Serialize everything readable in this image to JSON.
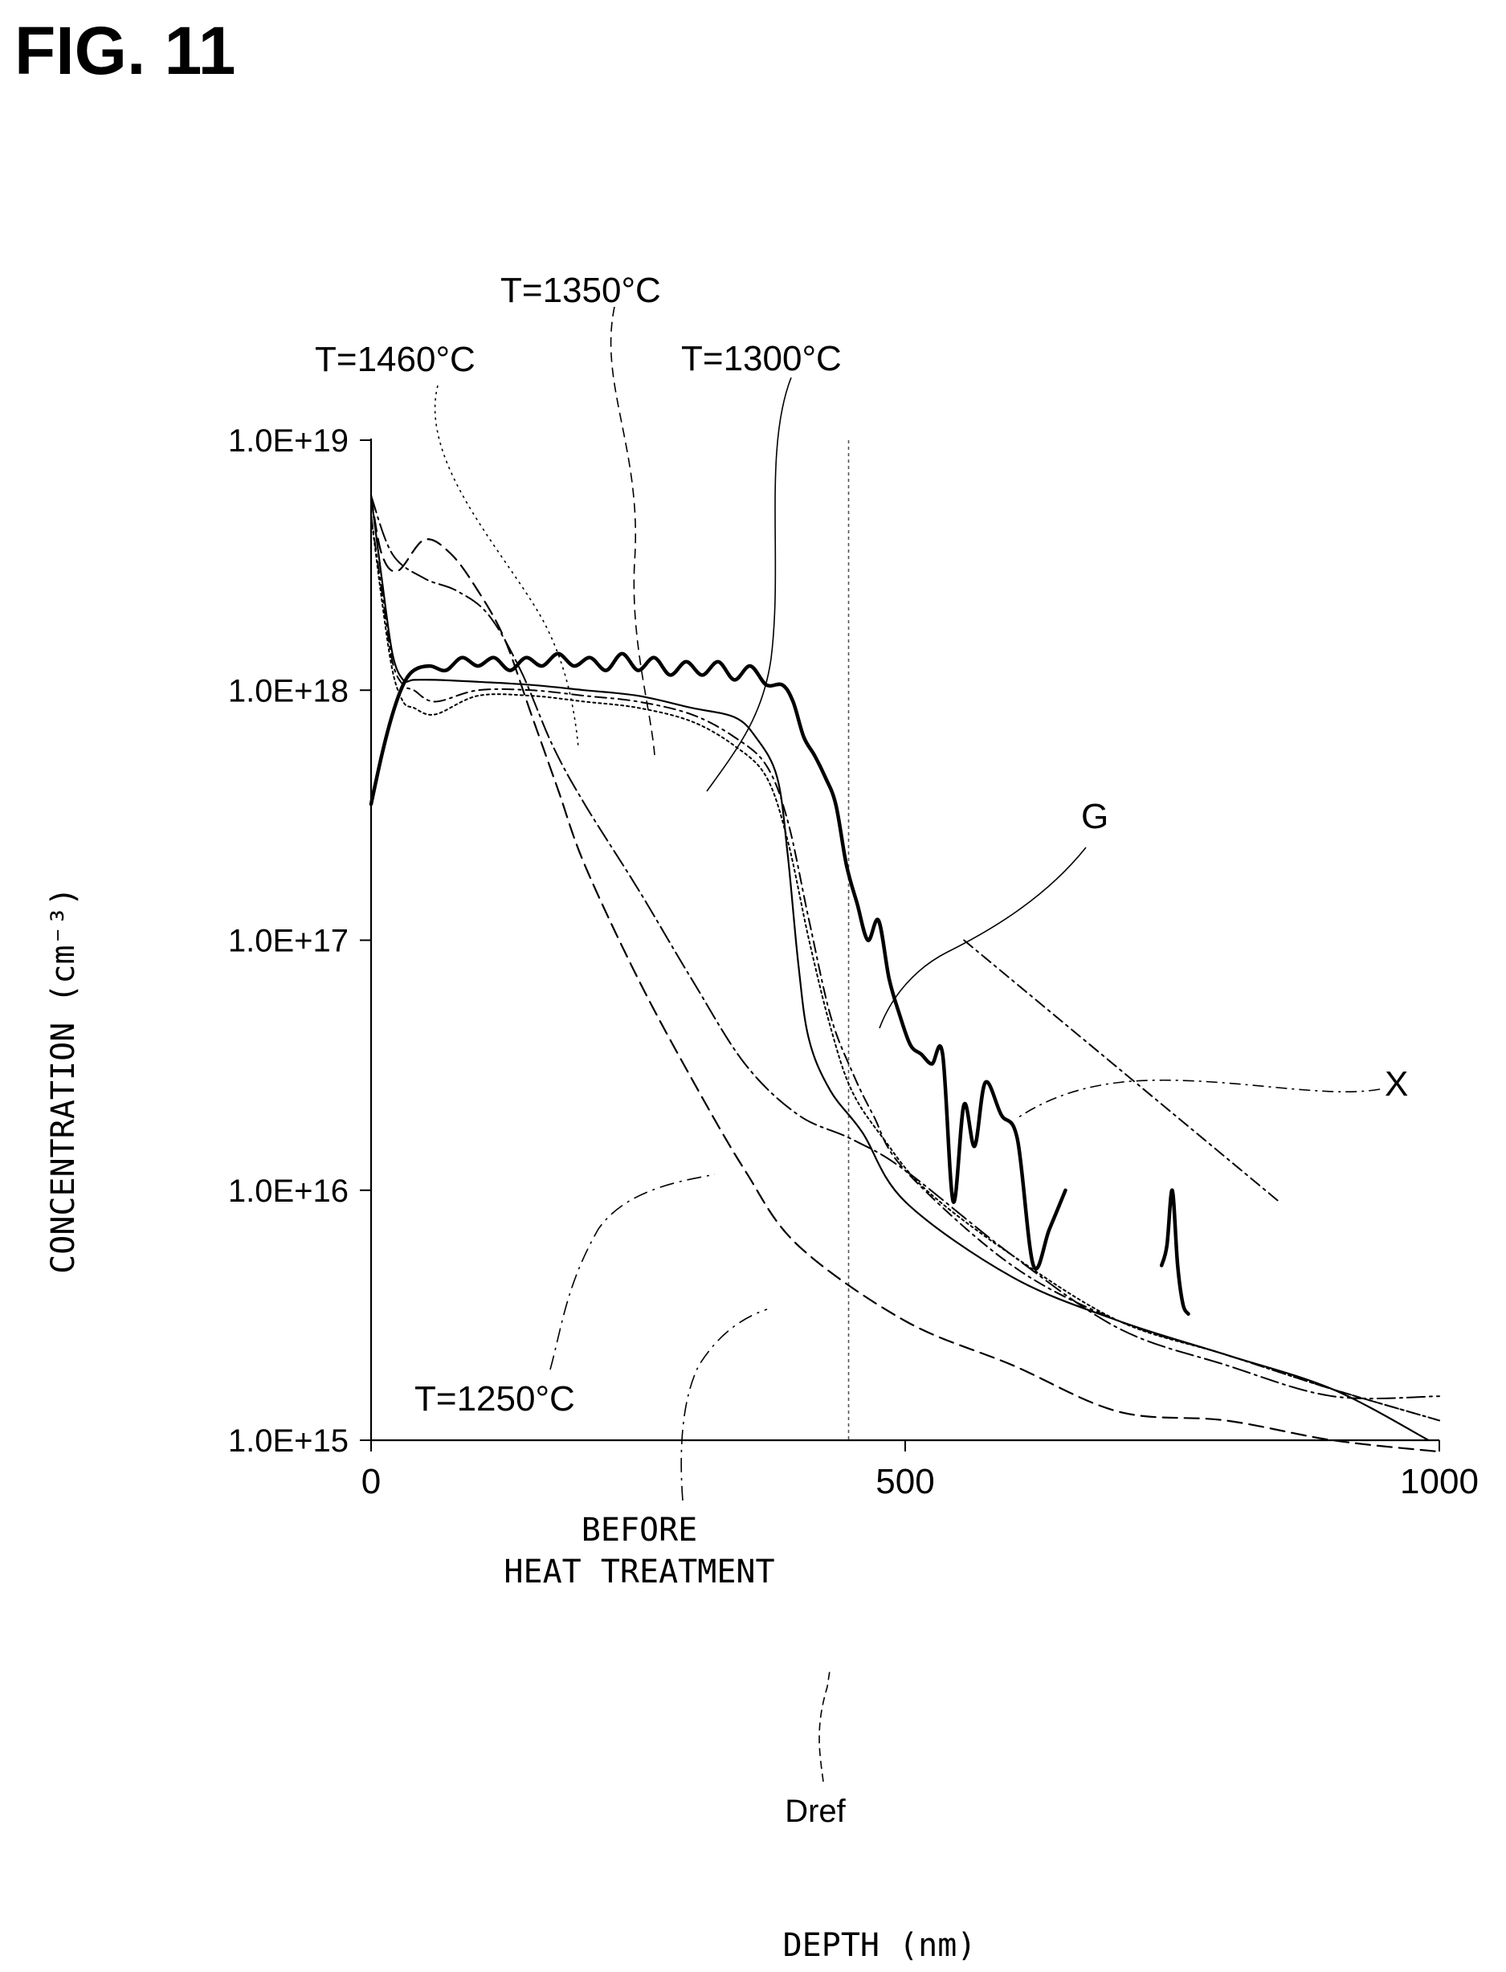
{
  "figure": {
    "label": "FIG. 11"
  },
  "chart_data": {
    "type": "line",
    "title": "",
    "xlabel": "DEPTH (nm)",
    "ylabel": "CONCENTRATION (cm⁻³)",
    "x_scale": "linear",
    "y_scale": "log",
    "xlim": [
      0,
      1000
    ],
    "ylim": [
      1000000000000000.0,
      1e+19
    ],
    "x_ticks": [
      {
        "value": 0,
        "label": "0"
      },
      {
        "value": 500,
        "label": "500"
      },
      {
        "value": 1000,
        "label": "1000"
      }
    ],
    "y_ticks": [
      {
        "value": 1e+19,
        "label": "1.0E+19"
      },
      {
        "value": 1e+18,
        "label": "1.0E+18"
      },
      {
        "value": 1e+17,
        "label": "1.0E+17"
      },
      {
        "value": 1e+16,
        "label": "1.0E+16"
      },
      {
        "value": 1000000000000000.0,
        "label": "1.0E+15"
      }
    ],
    "grid": false,
    "legend": "none",
    "reference_line": {
      "label": "Dref",
      "x": 447
    },
    "series": [
      {
        "name": "G",
        "style": "bold",
        "x": [
          0,
          10,
          20,
          30,
          40,
          55,
          70,
          85,
          100,
          115,
          130,
          145,
          160,
          175,
          190,
          205,
          220,
          235,
          250,
          265,
          280,
          295,
          310,
          325,
          340,
          355,
          370,
          385,
          395,
          405,
          415,
          425,
          435,
          445,
          455,
          465,
          475,
          485,
          495,
          505,
          515,
          525,
          535,
          545,
          555,
          565,
          575,
          590,
          605,
          620,
          635,
          650
        ],
        "y": [
          3.5e+17,
          5.5e+17,
          8e+17,
          1.05e+18,
          1.2e+18,
          1.25e+18,
          1.2e+18,
          1.35e+18,
          1.25e+18,
          1.35e+18,
          1.2e+18,
          1.35e+18,
          1.25e+18,
          1.4e+18,
          1.25e+18,
          1.35e+18,
          1.2e+18,
          1.4e+18,
          1.2e+18,
          1.35e+18,
          1.15e+18,
          1.3e+18,
          1.15e+18,
          1.3e+18,
          1.1e+18,
          1.25e+18,
          1.05e+18,
          1.05e+18,
          9e+17,
          6.5e+17,
          5.5e+17,
          4.5e+17,
          3.5e+17,
          2e+17,
          1.4e+17,
          1e+17,
          1.2e+17,
          7e+16,
          5e+16,
          3.8e+16,
          3.5e+16,
          3.2e+16,
          3.5e+16,
          9000000000000000.0,
          2.2e+16,
          1.5e+16,
          2.7e+16,
          2e+16,
          1.6e+16,
          5000000000000000.0,
          7000000000000000.0,
          1e+16
        ]
      },
      {
        "name": "G",
        "style": "bold",
        "x": [
          740,
          745,
          750,
          755,
          760,
          765
        ],
        "y": [
          5000000000000000.0,
          6000000000000000.0,
          1e+16,
          5000000000000000.0,
          3500000000000000.0,
          3200000000000000.0
        ]
      },
      {
        "name": "T=1300°C",
        "style": "solid",
        "x": [
          0,
          10,
          20,
          30,
          40,
          60,
          100,
          150,
          200,
          250,
          300,
          340,
          360,
          380,
          390,
          400,
          410,
          430,
          460,
          500,
          600,
          700,
          800,
          900,
          990
        ],
        "y": [
          6e+18,
          2.8e+18,
          1.4e+18,
          1.1e+18,
          1.1e+18,
          1.1e+18,
          1.08e+18,
          1.05e+18,
          1e+18,
          9.5e+17,
          8.5e+17,
          7.8e+17,
          6.5e+17,
          4.5e+17,
          2.2e+17,
          8e+16,
          4e+16,
          2.5e+16,
          1.7e+16,
          9000000000000000.0,
          4500000000000000.0,
          3000000000000000.0,
          2200000000000000.0,
          1600000000000000.0,
          1000000000000000.0
        ]
      },
      {
        "name": "T=1350°C",
        "style": "dash-dot",
        "x": [
          0,
          10,
          20,
          30,
          40,
          60,
          100,
          150,
          200,
          250,
          300,
          340,
          370,
          390,
          410,
          430,
          450,
          470,
          500,
          600,
          700,
          800,
          900,
          1000
        ],
        "y": [
          5e+18,
          2.5e+18,
          1.3e+18,
          1.05e+18,
          1e+18,
          9e+17,
          1e+18,
          1e+18,
          9.5e+17,
          9e+17,
          8e+17,
          6.5e+17,
          5e+17,
          3e+17,
          1.2e+17,
          5e+16,
          3e+16,
          2e+16,
          1.2e+16,
          5000000000000000.0,
          3000000000000000.0,
          2200000000000000.0,
          1600000000000000.0,
          1200000000000000.0
        ]
      },
      {
        "name": "T=1460°C",
        "style": "dotted",
        "x": [
          0,
          10,
          20,
          30,
          40,
          60,
          100,
          150,
          200,
          250,
          300,
          340,
          370,
          390,
          410,
          430,
          450,
          480,
          520,
          600,
          700,
          800,
          900,
          1000
        ],
        "y": [
          5e+18,
          2.3e+18,
          1.2e+18,
          9e+17,
          8.5e+17,
          8e+17,
          9.5e+17,
          9.5e+17,
          9e+17,
          8.5e+17,
          7.5e+17,
          6e+17,
          4.5e+17,
          2.5e+17,
          1e+17,
          4.5e+16,
          2.5e+16,
          1.6e+16,
          1e+16,
          5500000000000000.0,
          3000000000000000.0,
          2200000000000000.0,
          1600000000000000.0,
          1200000000000000.0
        ]
      },
      {
        "name": "T=1250°C",
        "style": "long-dash-dot",
        "x": [
          0,
          20,
          50,
          80,
          110,
          140,
          170,
          200,
          250,
          300,
          350,
          400,
          450,
          500,
          600,
          700,
          800,
          900,
          1000
        ],
        "y": [
          6e+18,
          3.5e+18,
          2.8e+18,
          2.5e+18,
          2e+18,
          1.2e+18,
          6e+17,
          3.5e+17,
          1.6e+17,
          7e+16,
          3.2e+16,
          2e+16,
          1.6e+16,
          1.2e+16,
          5500000000000000.0,
          2800000000000000.0,
          2000000000000000.0,
          1500000000000000.0,
          1500000000000000.0
        ]
      },
      {
        "name": "BEFORE HEAT TREATMENT",
        "style": "dashed",
        "x": [
          0,
          10,
          25,
          50,
          75,
          100,
          125,
          150,
          175,
          200,
          250,
          300,
          350,
          400,
          500,
          600,
          700,
          800,
          900,
          1000
        ],
        "y": [
          6e+18,
          3.5e+18,
          3e+18,
          4e+18,
          3.5e+18,
          2.5e+18,
          1.6e+18,
          8e+17,
          4e+17,
          2e+17,
          7e+16,
          2.8e+16,
          1.2e+16,
          6000000000000000.0,
          3000000000000000.0,
          2000000000000000.0,
          1300000000000000.0,
          1200000000000000.0,
          1000000000000000.0,
          900000000000000.0
        ]
      },
      {
        "name": "X",
        "style": "dash-dot",
        "x": [
          555,
          850
        ],
        "y": [
          1e+17,
          9000000000000000.0
        ]
      }
    ],
    "annotations": [
      {
        "text": "T=1460°C"
      },
      {
        "text": "T=1350°C"
      },
      {
        "text": "T=1300°C"
      },
      {
        "text": "T=1250°C"
      },
      {
        "text": "G"
      },
      {
        "text": "X"
      },
      {
        "text": "BEFORE"
      },
      {
        "text": "HEAT TREATMENT"
      },
      {
        "text": "Dref"
      }
    ]
  }
}
